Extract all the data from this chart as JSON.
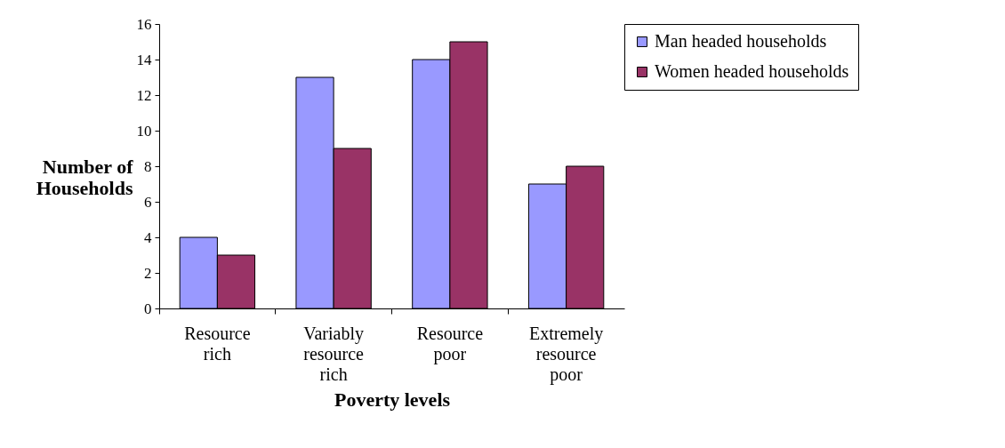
{
  "chart_data": {
    "type": "bar",
    "xlabel": "Poverty levels",
    "ylabel": "Number of Households",
    "categories": [
      "Resource rich",
      "Variably resource rich",
      "Resource poor",
      "Extremely resource poor"
    ],
    "series": [
      {
        "name": "Man headed households",
        "color": "#9999ff",
        "values": [
          4,
          13,
          14,
          7
        ]
      },
      {
        "name": "Women headed households",
        "color": "#993366",
        "values": [
          3,
          9,
          15,
          8
        ]
      }
    ],
    "ylim": [
      0,
      16
    ],
    "yticks": [
      0,
      2,
      4,
      6,
      8,
      10,
      12,
      14,
      16
    ],
    "grid": false,
    "legend": "right"
  }
}
